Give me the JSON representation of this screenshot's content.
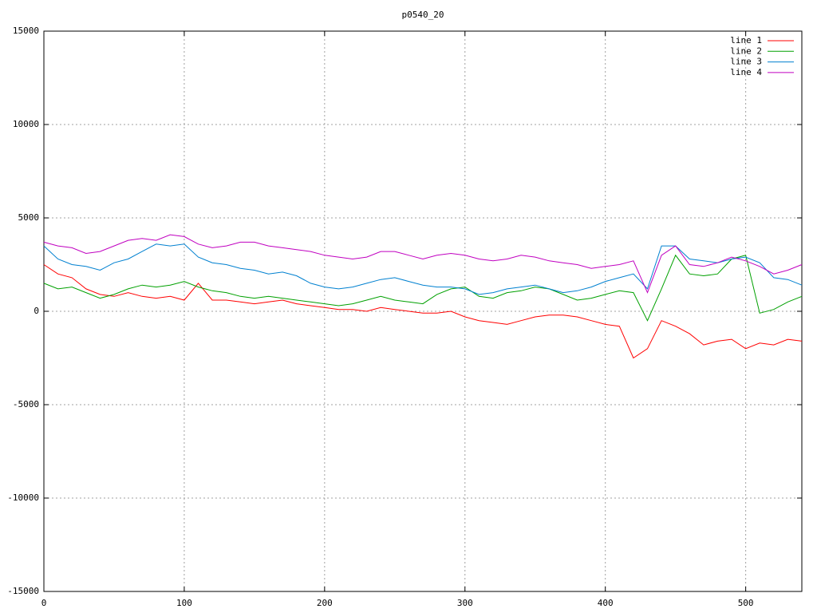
{
  "chart_data": {
    "type": "line",
    "title": "p0540_20",
    "x": [
      0,
      10,
      20,
      30,
      40,
      50,
      60,
      70,
      80,
      90,
      100,
      110,
      120,
      130,
      140,
      150,
      160,
      170,
      180,
      190,
      200,
      210,
      220,
      230,
      240,
      250,
      260,
      270,
      280,
      290,
      300,
      310,
      320,
      330,
      340,
      350,
      360,
      370,
      380,
      390,
      400,
      410,
      420,
      430,
      440,
      450,
      460,
      470,
      480,
      490,
      500,
      510,
      520,
      530,
      540
    ],
    "series": [
      {
        "name": "line 1",
        "color": "#ff0000",
        "values": [
          2500,
          2000,
          1800,
          1200,
          900,
          800,
          1000,
          800,
          700,
          800,
          600,
          1500,
          600,
          600,
          500,
          400,
          500,
          600,
          400,
          300,
          200,
          100,
          100,
          0,
          200,
          100,
          0,
          -100,
          -100,
          0,
          -300,
          -500,
          -600,
          -700,
          -500,
          -300,
          -200,
          -200,
          -300,
          -500,
          -700,
          -800,
          -2500,
          -2000,
          -500,
          -800,
          -1200,
          -1800,
          -1600,
          -1500,
          -2000,
          -1700,
          -1800,
          -1500,
          -1600
        ]
      },
      {
        "name": "line 2",
        "color": "#00a000",
        "values": [
          1500,
          1200,
          1300,
          1000,
          700,
          900,
          1200,
          1400,
          1300,
          1400,
          1600,
          1300,
          1100,
          1000,
          800,
          700,
          800,
          700,
          600,
          500,
          400,
          300,
          400,
          600,
          800,
          600,
          500,
          400,
          900,
          1200,
          1300,
          800,
          700,
          1000,
          1100,
          1300,
          1200,
          900,
          600,
          700,
          900,
          1100,
          1000,
          -500,
          1200,
          3000,
          2000,
          1900,
          2000,
          2800,
          3000,
          -100,
          100,
          500,
          800
        ]
      },
      {
        "name": "line 3",
        "color": "#0080d0",
        "values": [
          3500,
          2800,
          2500,
          2400,
          2200,
          2600,
          2800,
          3200,
          3600,
          3500,
          3600,
          2900,
          2600,
          2500,
          2300,
          2200,
          2000,
          2100,
          1900,
          1500,
          1300,
          1200,
          1300,
          1500,
          1700,
          1800,
          1600,
          1400,
          1300,
          1300,
          1200,
          900,
          1000,
          1200,
          1300,
          1400,
          1200,
          1000,
          1100,
          1300,
          1600,
          1800,
          2000,
          1200,
          3500,
          3500,
          2800,
          2700,
          2600,
          2800,
          2900,
          2600,
          1800,
          1700,
          1400
        ]
      },
      {
        "name": "line 4",
        "color": "#c000c0",
        "values": [
          3700,
          3500,
          3400,
          3100,
          3200,
          3500,
          3800,
          3900,
          3800,
          4100,
          4000,
          3600,
          3400,
          3500,
          3700,
          3700,
          3500,
          3400,
          3300,
          3200,
          3000,
          2900,
          2800,
          2900,
          3200,
          3200,
          3000,
          2800,
          3000,
          3100,
          3000,
          2800,
          2700,
          2800,
          3000,
          2900,
          2700,
          2600,
          2500,
          2300,
          2400,
          2500,
          2700,
          1000,
          3000,
          3500,
          2500,
          2400,
          2600,
          2900,
          2700,
          2400,
          2000,
          2200,
          2500
        ]
      }
    ],
    "xlim": [
      0,
      540
    ],
    "xticks": [
      0,
      100,
      200,
      300,
      400,
      500
    ],
    "ylim": [
      -15000,
      15000
    ],
    "yticks": [
      -15000,
      -10000,
      -5000,
      0,
      5000,
      10000,
      15000
    ],
    "grid": true,
    "legend": "top-right"
  }
}
